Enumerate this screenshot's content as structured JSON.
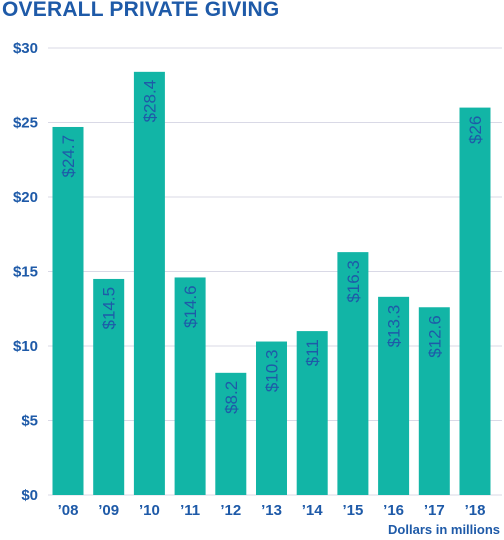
{
  "title": "OVERALL PRIVATE GIVING",
  "footnote": "Dollars in millions",
  "colors": {
    "bar": "#12b5a6",
    "text": "#1e5aa8",
    "grid": "#d9d9e6"
  },
  "chart_data": {
    "type": "bar",
    "title": "OVERALL PRIVATE GIVING",
    "xlabel": "",
    "ylabel": "",
    "unit_note": "Dollars in millions",
    "categories": [
      "’08",
      "’09",
      "’10",
      "’11",
      "’12",
      "’13",
      "’14",
      "’15",
      "’16",
      "’17",
      "’18"
    ],
    "values": [
      24.7,
      14.5,
      28.4,
      14.6,
      8.2,
      10.3,
      11,
      16.3,
      13.3,
      12.6,
      26
    ],
    "data_labels": [
      "$24.7",
      "$14.5",
      "$28.4",
      "$14.6",
      "$8.2",
      "$10.3",
      "$11",
      "$16.3",
      "$13.3",
      "$12.6",
      "$26"
    ],
    "ylim": [
      0,
      30
    ],
    "yticks": [
      0,
      5,
      10,
      15,
      20,
      25,
      30
    ],
    "ytick_labels": [
      "$0",
      "$5",
      "$10",
      "$15",
      "$20",
      "$25",
      "$30"
    ],
    "grid": true,
    "legend": "none"
  }
}
